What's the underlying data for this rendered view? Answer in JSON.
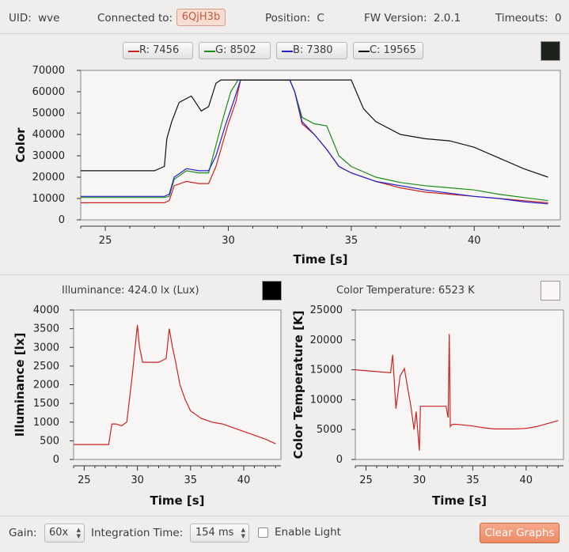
{
  "header": {
    "uid_label": "UID:",
    "uid_value": "wve",
    "connected_label": "Connected to:",
    "connected_value": "6QjH3b",
    "position_label": "Position:",
    "position_value": "C",
    "fw_label": "FW Version:",
    "fw_value": "2.0.1",
    "timeouts_label": "Timeouts:",
    "timeouts_value": "0"
  },
  "legend": {
    "r": {
      "label": "R: 7456",
      "color": "#cc2222"
    },
    "g": {
      "label": "G: 8502",
      "color": "#1a8a1a"
    },
    "b": {
      "label": "B: 7380",
      "color": "#2222cc"
    },
    "c": {
      "label": "C: 19565",
      "color": "#111111"
    },
    "swatch_color": "#1c231d"
  },
  "illuminance": {
    "label": "Illuminance: 424.0 lx (Lux)",
    "swatch_color": "#000000"
  },
  "color_temperature": {
    "label": "Color Temperature: 6523 K",
    "swatch_color": "#fbf7f8"
  },
  "controls": {
    "gain_label": "Gain:",
    "gain_value": "60x",
    "integration_label": "Integration Time:",
    "integration_value": "154 ms",
    "enable_light_label": "Enable Light",
    "clear_label": "Clear Graphs"
  },
  "chart_data": [
    {
      "type": "line",
      "xlabel": "Time [s]",
      "ylabel": "Color",
      "xlim": [
        24,
        43.5
      ],
      "ylim": [
        0,
        70000
      ],
      "xticks": [
        25,
        30,
        35,
        40
      ],
      "yticks": [
        0,
        10000,
        20000,
        30000,
        40000,
        50000,
        60000,
        70000
      ],
      "ytick_labels": [
        "0",
        "10000",
        "20000",
        "30000",
        "40000",
        "50000",
        "60000",
        "70000"
      ],
      "series": [
        {
          "color": "#cc2222",
          "x": [
            24,
            27.4,
            27.6,
            27.8,
            28.3,
            28.8,
            29.2,
            29.5,
            30.0,
            30.3,
            30.5,
            32.5,
            32.7,
            33.0,
            33.5,
            34.0,
            34.5,
            35.0,
            36,
            37,
            38,
            39,
            40,
            41,
            42,
            43
          ],
          "y": [
            8000,
            8000,
            9000,
            16000,
            18000,
            17000,
            17000,
            25000,
            45000,
            55000,
            65535,
            65535,
            60000,
            45000,
            40000,
            33000,
            25000,
            22000,
            18000,
            15000,
            13000,
            12000,
            11000,
            10000,
            9000,
            8000
          ]
        },
        {
          "color": "#1a8a1a",
          "x": [
            24,
            27.4,
            27.6,
            27.8,
            28.3,
            28.8,
            29.2,
            29.5,
            29.8,
            30.1,
            30.4,
            32.5,
            32.7,
            33.0,
            33.5,
            34.0,
            34.5,
            35.0,
            36,
            37,
            38,
            39,
            40,
            41,
            42,
            43
          ],
          "y": [
            10500,
            10500,
            11000,
            19000,
            23000,
            22000,
            22000,
            35000,
            48000,
            60000,
            65535,
            65535,
            60000,
            48000,
            45000,
            44000,
            30000,
            25000,
            20000,
            17500,
            16000,
            15000,
            14000,
            12000,
            10500,
            9000
          ]
        },
        {
          "color": "#2222cc",
          "x": [
            24,
            27.4,
            27.6,
            27.8,
            28.3,
            28.8,
            29.2,
            29.5,
            29.9,
            30.2,
            30.5,
            32.5,
            32.7,
            33.0,
            33.5,
            34.0,
            34.5,
            35.0,
            36,
            37,
            38,
            39,
            40,
            41,
            42,
            43
          ],
          "y": [
            11000,
            11000,
            12000,
            20000,
            24000,
            23000,
            23000,
            30000,
            45000,
            55000,
            65535,
            65535,
            60000,
            46000,
            40000,
            33000,
            25000,
            22000,
            18000,
            16000,
            14000,
            12500,
            11000,
            10000,
            8500,
            7500
          ]
        },
        {
          "color": "#111111",
          "x": [
            24,
            27.0,
            27.4,
            27.5,
            27.7,
            28.0,
            28.5,
            28.9,
            29.2,
            29.5,
            29.7,
            32.5,
            33.0,
            35.0,
            35.5,
            36.0,
            37.0,
            38.0,
            39.0,
            40.0,
            41.0,
            42.0,
            43.0
          ],
          "y": [
            23000,
            23000,
            25000,
            38000,
            46000,
            55000,
            58000,
            51000,
            53000,
            64000,
            65535,
            65535,
            65535,
            65535,
            52000,
            46000,
            40000,
            38000,
            37000,
            34000,
            29000,
            24000,
            20000
          ]
        }
      ]
    },
    {
      "type": "line",
      "xlabel": "Time [s]",
      "ylabel": "Illuminance [lx]",
      "xlim": [
        24,
        43.5
      ],
      "ylim": [
        0,
        4000
      ],
      "xticks": [
        25,
        30,
        35,
        40
      ],
      "yticks": [
        0,
        500,
        1000,
        1500,
        2000,
        2500,
        3000,
        3500,
        4000
      ],
      "ytick_labels": [
        "0",
        "500",
        "1000",
        "1500",
        "2000",
        "2500",
        "3000",
        "3500",
        "4000"
      ],
      "series": [
        {
          "color": "#cc2222",
          "x": [
            24,
            27.3,
            27.6,
            28,
            28.5,
            29,
            29.5,
            30,
            30.2,
            30.5,
            31,
            32,
            32.7,
            33,
            33.3,
            33.6,
            34,
            34.5,
            35,
            36,
            37,
            38,
            39,
            40,
            41,
            42,
            43
          ],
          "y": [
            400,
            400,
            950,
            950,
            900,
            1000,
            2200,
            3600,
            3000,
            2600,
            2600,
            2600,
            2700,
            3500,
            3000,
            2600,
            2000,
            1600,
            1300,
            1100,
            1000,
            950,
            850,
            750,
            650,
            550,
            420
          ]
        }
      ]
    },
    {
      "type": "line",
      "xlabel": "Time [s]",
      "ylabel": "Color Temperature [K]",
      "xlim": [
        24,
        43.5
      ],
      "ylim": [
        0,
        25000
      ],
      "xticks": [
        25,
        30,
        35,
        40
      ],
      "yticks": [
        0,
        5000,
        10000,
        15000,
        20000,
        25000
      ],
      "ytick_labels": [
        "0",
        "5000",
        "10000",
        "15000",
        "20000",
        "25000"
      ],
      "series": [
        {
          "color": "#cc2222",
          "x": [
            24,
            27.3,
            27.5,
            27.8,
            28.2,
            28.6,
            28.9,
            29.2,
            29.5,
            29.7,
            30,
            30.1,
            30.3,
            30.5,
            32.5,
            32.7,
            32.8,
            32.9,
            33.0,
            33.3,
            34,
            35,
            36,
            37,
            38,
            39,
            40,
            41,
            42,
            43
          ],
          "y": [
            15000,
            14500,
            17500,
            8500,
            14000,
            15200,
            12000,
            9000,
            5000,
            8000,
            1500,
            8900,
            8900,
            8900,
            8900,
            7000,
            21000,
            5500,
            5800,
            5900,
            5800,
            5600,
            5300,
            5100,
            5100,
            5100,
            5200,
            5500,
            6000,
            6500
          ]
        }
      ]
    }
  ]
}
